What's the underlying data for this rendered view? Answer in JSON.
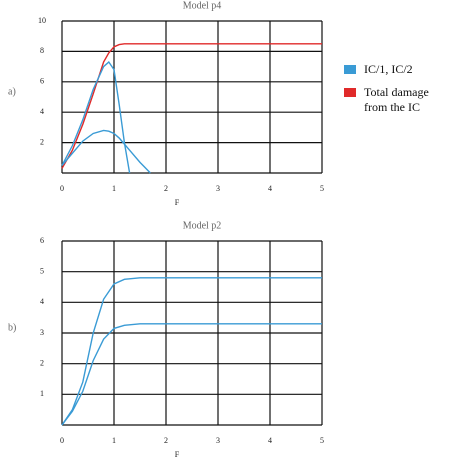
{
  "chart_data": [
    {
      "type": "line",
      "title": "Model p4",
      "panel": "a)",
      "xlabel": "F",
      "x": [
        0,
        0.2,
        0.4,
        0.6,
        0.8,
        0.9,
        1.0,
        1.1,
        1.2,
        1.3,
        1.5,
        1.7,
        2,
        3,
        4,
        5
      ],
      "series": [
        {
          "color": "#e02a2a",
          "values": [
            0.3,
            1.5,
            3.2,
            5.2,
            7.3,
            7.9,
            8.3,
            8.45,
            8.5,
            8.5,
            8.5,
            8.5,
            8.5,
            8.5,
            8.5,
            8.5
          ]
        },
        {
          "color": "#3a9bd5",
          "values": [
            0.5,
            1.8,
            3.5,
            5.5,
            7.0,
            7.3,
            6.8,
            4.5,
            2.0,
            0,
            null,
            null,
            null,
            null,
            null,
            null
          ]
        },
        {
          "color": "#3a9bd5",
          "values": [
            0.5,
            1.3,
            2.1,
            2.6,
            2.8,
            2.75,
            2.6,
            2.3,
            1.9,
            1.5,
            0.7,
            0,
            null,
            null,
            null,
            null
          ]
        }
      ],
      "xlim": [
        0,
        5
      ],
      "xticks": [
        0,
        1,
        2,
        3,
        4,
        5
      ],
      "ylim": [
        0,
        10
      ],
      "yticks": [
        2,
        4,
        6,
        8,
        10
      ],
      "grid": true
    },
    {
      "type": "line",
      "title": "Model p2",
      "panel": "b)",
      "xlabel": "F",
      "x": [
        0,
        0.2,
        0.4,
        0.6,
        0.8,
        1,
        1.2,
        1.5,
        2,
        3,
        4,
        5
      ],
      "series": [
        {
          "color": "#3a9bd5",
          "values": [
            0,
            0.5,
            1.4,
            3.0,
            4.1,
            4.6,
            4.75,
            4.8,
            4.8,
            4.8,
            4.8,
            4.8
          ]
        },
        {
          "color": "#3a9bd5",
          "values": [
            0,
            0.45,
            1.1,
            2.1,
            2.8,
            3.15,
            3.25,
            3.3,
            3.3,
            3.3,
            3.3,
            3.3
          ]
        }
      ],
      "xlim": [
        0,
        5
      ],
      "xticks": [
        0,
        1,
        2,
        3,
        4,
        5
      ],
      "ylim": [
        0,
        6
      ],
      "yticks": [
        1,
        2,
        3,
        4,
        5,
        6
      ],
      "grid": true
    }
  ],
  "legend": [
    {
      "label": "IC/1, IC/2",
      "color": "#3a9bd5"
    },
    {
      "label": "Total damage from the IC",
      "color": "#e02a2a"
    }
  ]
}
